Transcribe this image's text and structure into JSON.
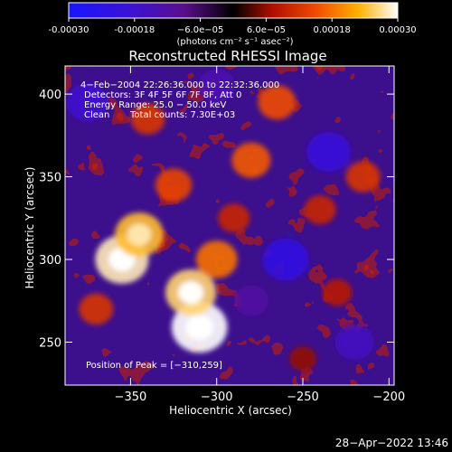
{
  "chart_data": {
    "type": "heatmap",
    "title": "Reconstructed RHESSI Image",
    "xlabel": "Heliocentric X (arcsec)",
    "ylabel": "Heliocentric Y (arcsec)",
    "xlim": [
      -388,
      -197
    ],
    "ylim": [
      224,
      417
    ],
    "x_ticks": [
      -350,
      -300,
      -250,
      -200
    ],
    "y_ticks": [
      250,
      300,
      350,
      400
    ],
    "colorbar": {
      "ticks": [
        "-0.00030",
        "-0.00018",
        "−6.0e−05",
        "6.0e−05",
        "0.00018",
        "0.00030"
      ],
      "tick_values": [
        -0.0003,
        -0.00018,
        -6e-05,
        6e-05,
        0.00018,
        0.0003
      ],
      "range": [
        -0.0003,
        0.0003
      ],
      "unit_label": "(photons cm⁻² s⁻¹ asec⁻²)"
    },
    "annotations": [
      "4−Feb−2004 22:26:36.000 to 22:32:36.000",
      "Detectors: 3F 4F 5F 6F 7F 8F, Att 0",
      "Energy Range: 25.0 − 50.0 keV",
      "Clean",
      "Total counts: 7.30E+03"
    ],
    "peak_label": "Position of Peak = [−310,259]",
    "peak": [
      -310,
      259
    ],
    "hotspots": [
      {
        "x": -355,
        "y": 300,
        "value": 0.00028
      },
      {
        "x": -345,
        "y": 315,
        "value": 0.00024
      },
      {
        "x": -310,
        "y": 259,
        "value": 0.0003
      },
      {
        "x": -315,
        "y": 280,
        "value": 0.00026
      },
      {
        "x": -300,
        "y": 300,
        "value": 0.00018
      },
      {
        "x": -325,
        "y": 345,
        "value": 0.00014
      },
      {
        "x": -280,
        "y": 360,
        "value": 0.00016
      },
      {
        "x": -265,
        "y": 395,
        "value": 0.00015
      },
      {
        "x": -340,
        "y": 385,
        "value": 0.00012
      },
      {
        "x": -290,
        "y": 325,
        "value": 0.0001
      },
      {
        "x": -240,
        "y": 330,
        "value": 0.0001
      },
      {
        "x": -215,
        "y": 350,
        "value": 0.00012
      },
      {
        "x": -230,
        "y": 280,
        "value": 8e-05
      },
      {
        "x": -370,
        "y": 270,
        "value": 0.00012
      },
      {
        "x": -250,
        "y": 240,
        "value": 6e-05
      }
    ],
    "coldspots": [
      {
        "x": -260,
        "y": 300,
        "value": -0.00022
      },
      {
        "x": -235,
        "y": 365,
        "value": -0.0002
      },
      {
        "x": -375,
        "y": 395,
        "value": -0.00018
      },
      {
        "x": -300,
        "y": 405,
        "value": -0.00014
      },
      {
        "x": -280,
        "y": 275,
        "value": -0.00012
      },
      {
        "x": -220,
        "y": 250,
        "value": -0.00016
      }
    ]
  },
  "footer": {
    "timestamp": "28−Apr−2022 13:46"
  }
}
